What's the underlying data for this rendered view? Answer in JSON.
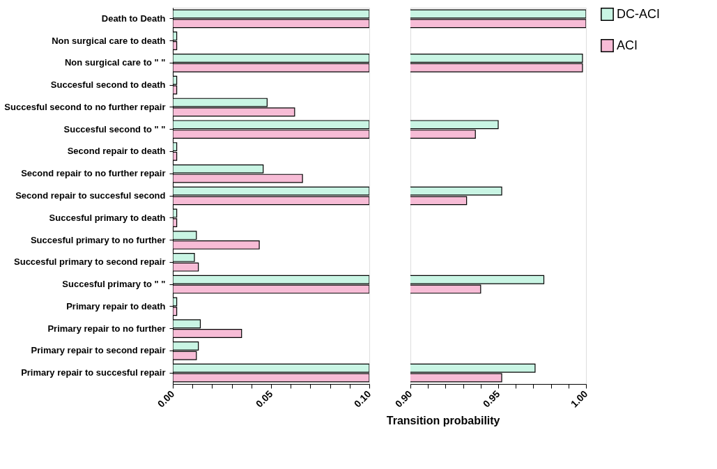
{
  "chart_data": [
    {
      "type": "bar",
      "orientation": "horizontal",
      "xlabel": "Transition probability",
      "legend": "right",
      "categories": [
        "Death to Death",
        "Non surgical care to death",
        "Non surgical care to \" \"",
        "Succesful second to death",
        "Succesful second to no further repair",
        "Succesful second to \" \"",
        "Second repair to death",
        "Second repair to no further repair",
        "Second repair to succesful second",
        "Succesful primary to death",
        "Succesful primary to no further",
        "Succesful primary to second repair",
        "Succesful primary to \" \"",
        "Primary repair to death",
        "Primary repair to no further",
        "Primary repair to second repair",
        "Primary repair to succesful repair"
      ],
      "series": [
        {
          "name": "DC-ACI",
          "color": "#c9f5e4",
          "values": [
            0.1,
            0.002,
            0.1,
            0.002,
            0.048,
            0.1,
            0.002,
            0.046,
            0.1,
            0.002,
            0.012,
            0.011,
            0.1,
            0.002,
            0.014,
            0.013,
            0.1
          ]
        },
        {
          "name": "ACI",
          "color": "#f7bcd6",
          "values": [
            0.1,
            0.002,
            0.1,
            0.002,
            0.062,
            0.1,
            0.002,
            0.066,
            0.1,
            0.002,
            0.044,
            0.013,
            0.1,
            0.002,
            0.035,
            0.012,
            0.1
          ]
        }
      ],
      "xlim": [
        0,
        0.1
      ],
      "xticks": [
        {
          "value": 0,
          "label": "0.00"
        },
        {
          "value": 0.01,
          "label": null
        },
        {
          "value": 0.02,
          "label": null
        },
        {
          "value": 0.03,
          "label": null
        },
        {
          "value": 0.04,
          "label": null
        },
        {
          "value": 0.05,
          "label": "0.05"
        },
        {
          "value": 0.06,
          "label": null
        },
        {
          "value": 0.07,
          "label": null
        },
        {
          "value": 0.08,
          "label": null
        },
        {
          "value": 0.09,
          "label": null
        },
        {
          "value": 0.1,
          "label": "0.10"
        }
      ]
    },
    {
      "type": "bar",
      "orientation": "horizontal",
      "legend": "right",
      "tick_labels": "x",
      "categories": [
        null,
        null,
        null,
        null,
        null,
        null,
        null,
        null,
        null,
        null,
        null,
        null,
        null,
        null,
        null,
        null,
        null
      ],
      "series": [
        {
          "name": "DC-ACI",
          "color": "#c9f5e4",
          "values": [
            1,
            null,
            0.998,
            null,
            null,
            0.95,
            null,
            null,
            0.952,
            null,
            null,
            null,
            0.976,
            null,
            null,
            null,
            0.971
          ]
        },
        {
          "name": "ACI",
          "color": "#f7bcd6",
          "values": [
            1,
            null,
            0.998,
            null,
            null,
            0.937,
            null,
            null,
            0.932,
            null,
            null,
            null,
            0.94,
            null,
            null,
            null,
            0.952
          ]
        }
      ],
      "xlim": [
        0.9,
        1
      ],
      "xticks": [
        {
          "value": 0.9,
          "label": "0.90"
        },
        {
          "value": 0.91,
          "label": null
        },
        {
          "value": 0.92,
          "label": null
        },
        {
          "value": 0.93,
          "label": null
        },
        {
          "value": 0.94,
          "label": null
        },
        {
          "value": 0.95,
          "label": "0.95"
        },
        {
          "value": 0.96,
          "label": null
        },
        {
          "value": 0.97,
          "label": null
        },
        {
          "value": 0.98,
          "label": null
        },
        {
          "value": 0.99,
          "label": null
        },
        {
          "value": 1,
          "label": "1.00"
        }
      ]
    }
  ]
}
